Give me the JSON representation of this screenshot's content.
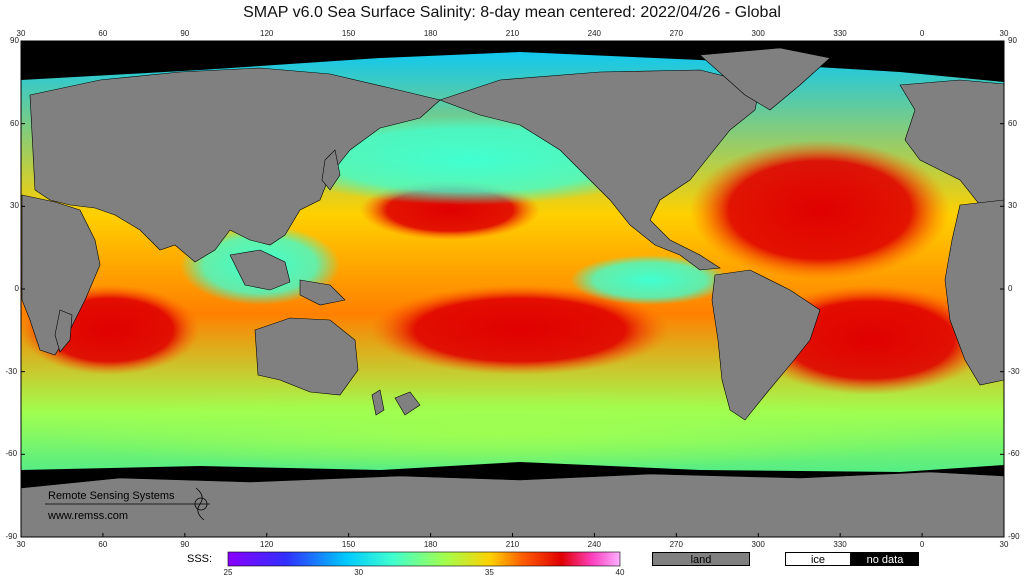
{
  "title": "SMAP  v6.0  Sea Surface Salinity: 8-day mean centered: 2022/04/26 - Global",
  "branding": {
    "org": "Remote Sensing Systems",
    "url": "www.remss.com"
  },
  "axes": {
    "lon_ticks": [
      "30",
      "60",
      "90",
      "120",
      "150",
      "180",
      "210",
      "240",
      "270",
      "300",
      "330",
      "0",
      "30"
    ],
    "lat_ticks": [
      "90",
      "60",
      "30",
      "0",
      "-30",
      "-60",
      "-90"
    ]
  },
  "legend": {
    "label": "SSS:",
    "colorbar_ticks": [
      "25",
      "30",
      "35",
      "40"
    ],
    "colorbar_range": [
      25,
      40
    ],
    "land_label": "land",
    "ice_label": "ice",
    "nodata_label": "no data"
  },
  "colors": {
    "land": "#808080",
    "ice": "#ffffff",
    "no_data": "#000000",
    "colormap": [
      "#8a00ff",
      "#3030ff",
      "#00c8ff",
      "#40ffd0",
      "#a0ff50",
      "#ffd000",
      "#ff6000",
      "#e00000",
      "#ff40c0",
      "#ffb0ff"
    ]
  }
}
